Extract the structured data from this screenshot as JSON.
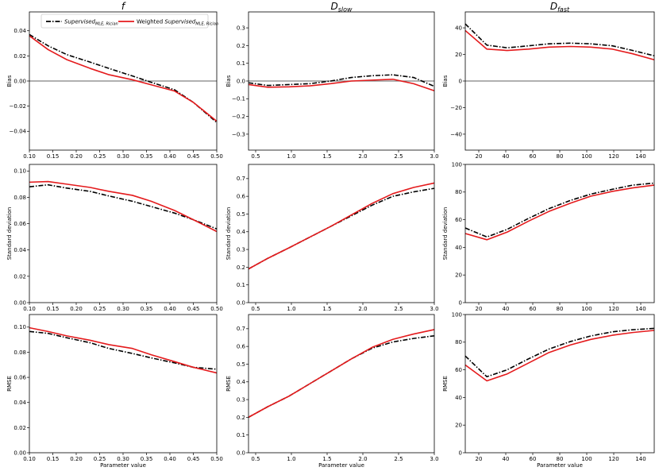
{
  "legend": {
    "supervised": {
      "main": "Supervised",
      "sub": "MLE, Rician"
    },
    "weighted": {
      "prefix": "Weighted ",
      "main": "Supervised",
      "sub": "MLE, Rician"
    }
  },
  "colors": {
    "supervised": "#000000",
    "weighted": "#e41a1c",
    "zero_line": "#808080",
    "frame": "#000000"
  },
  "chart_data": [
    {
      "type": "line",
      "id": "bias-f",
      "title": "f",
      "title_sub": "",
      "xlabel": "",
      "ylabel": "Bias",
      "xlim": [
        0.1,
        0.5
      ],
      "ylim": [
        -0.055,
        0.055
      ],
      "xticks": [
        0.1,
        0.15,
        0.2,
        0.25,
        0.3,
        0.35,
        0.4,
        0.45,
        0.5
      ],
      "xtick_labels": [
        "0.10",
        "0.15",
        "0.20",
        "0.25",
        "0.30",
        "0.35",
        "0.40",
        "0.45",
        "0.50"
      ],
      "yticks": [
        -0.04,
        -0.02,
        0.0,
        0.02,
        0.04
      ],
      "ytick_labels": [
        "−0.04",
        "−0.02",
        "0.00",
        "0.02",
        "0.04"
      ],
      "zero_line": true,
      "show_legend": true,
      "x": [
        0.1,
        0.14,
        0.18,
        0.23,
        0.27,
        0.32,
        0.36,
        0.41,
        0.45,
        0.5
      ],
      "series": [
        {
          "name": "Supervised MLE, Rician",
          "values": [
            0.037,
            0.028,
            0.021,
            0.015,
            0.01,
            0.004,
            -0.001,
            -0.007,
            -0.017,
            -0.033
          ]
        },
        {
          "name": "Weighted Supervised MLE, Rician",
          "values": [
            0.036,
            0.025,
            0.017,
            0.01,
            0.005,
            0.001,
            -0.003,
            -0.008,
            -0.017,
            -0.032
          ]
        }
      ]
    },
    {
      "type": "line",
      "id": "bias-dslow",
      "title": "D",
      "title_sub": "slow",
      "xlabel": "",
      "ylabel": "Bias",
      "xlim": [
        0.4,
        3.0
      ],
      "ylim": [
        -0.39,
        0.39
      ],
      "xticks": [
        0.5,
        1.0,
        1.5,
        2.0,
        2.5,
        3.0
      ],
      "xtick_labels": [
        "0.5",
        "1.0",
        "1.5",
        "2.0",
        "2.5",
        "3.0"
      ],
      "yticks": [
        -0.3,
        -0.2,
        -0.1,
        0.0,
        0.1,
        0.2,
        0.3
      ],
      "ytick_labels": [
        "−0.3",
        "−0.2",
        "−0.1",
        "0.0",
        "0.1",
        "0.2",
        "0.3"
      ],
      "zero_line": true,
      "show_legend": false,
      "x": [
        0.4,
        0.67,
        0.97,
        1.26,
        1.55,
        1.84,
        2.13,
        2.42,
        2.71,
        3.0
      ],
      "series": [
        {
          "name": "Supervised MLE, Rician",
          "values": [
            -0.01,
            -0.025,
            -0.02,
            -0.015,
            0.0,
            0.02,
            0.03,
            0.035,
            0.02,
            -0.03
          ]
        },
        {
          "name": "Weighted Supervised MLE, Rician",
          "values": [
            -0.02,
            -0.035,
            -0.033,
            -0.027,
            -0.015,
            0.0,
            0.005,
            0.01,
            -0.015,
            -0.055
          ]
        }
      ]
    },
    {
      "type": "line",
      "id": "bias-dfast",
      "title": "D",
      "title_sub": "fast",
      "xlabel": "",
      "ylabel": "Bias",
      "xlim": [
        10,
        150
      ],
      "ylim": [
        -52,
        52
      ],
      "xticks": [
        20,
        40,
        60,
        80,
        100,
        120,
        140
      ],
      "xtick_labels": [
        "20",
        "40",
        "60",
        "80",
        "100",
        "120",
        "140"
      ],
      "yticks": [
        -40,
        -20,
        0,
        20,
        40
      ],
      "ytick_labels": [
        "−40",
        "−20",
        "0",
        "20",
        "40"
      ],
      "zero_line": true,
      "show_legend": false,
      "x": [
        10,
        26,
        41,
        57,
        72,
        88,
        103,
        119,
        134,
        150
      ],
      "series": [
        {
          "name": "Supervised MLE, Rician",
          "values": [
            43,
            27,
            25,
            26.5,
            28,
            28.5,
            28,
            26.5,
            23,
            19
          ]
        },
        {
          "name": "Weighted Supervised MLE, Rician",
          "values": [
            38,
            24,
            23,
            24,
            25.5,
            26,
            25.5,
            24,
            20.5,
            16
          ]
        }
      ]
    },
    {
      "type": "line",
      "id": "std-f",
      "title": "",
      "title_sub": "",
      "xlabel": "",
      "ylabel": "Standard deviation",
      "xlim": [
        0.1,
        0.5
      ],
      "ylim": [
        0.0,
        0.105
      ],
      "xticks": [
        0.1,
        0.15,
        0.2,
        0.25,
        0.3,
        0.35,
        0.4,
        0.45,
        0.5
      ],
      "xtick_labels": [
        "0.10",
        "0.15",
        "0.20",
        "0.25",
        "0.30",
        "0.35",
        "0.40",
        "0.45",
        "0.50"
      ],
      "yticks": [
        0.0,
        0.02,
        0.04,
        0.06,
        0.08,
        0.1
      ],
      "ytick_labels": [
        "0.00",
        "0.02",
        "0.04",
        "0.06",
        "0.08",
        "0.10"
      ],
      "zero_line": false,
      "show_legend": false,
      "x": [
        0.1,
        0.14,
        0.18,
        0.23,
        0.27,
        0.32,
        0.36,
        0.41,
        0.45,
        0.5
      ],
      "series": [
        {
          "name": "Supervised MLE, Rician",
          "values": [
            0.088,
            0.0895,
            0.087,
            0.0845,
            0.081,
            0.077,
            0.073,
            0.068,
            0.063,
            0.056
          ]
        },
        {
          "name": "Weighted Supervised MLE, Rician",
          "values": [
            0.0915,
            0.092,
            0.09,
            0.0875,
            0.0845,
            0.0815,
            0.077,
            0.07,
            0.063,
            0.054
          ]
        }
      ]
    },
    {
      "type": "line",
      "id": "std-dslow",
      "title": "",
      "title_sub": "",
      "xlabel": "",
      "ylabel": "Standard deviation",
      "xlim": [
        0.4,
        3.0
      ],
      "ylim": [
        0.0,
        0.78
      ],
      "xticks": [
        0.5,
        1.0,
        1.5,
        2.0,
        2.5,
        3.0
      ],
      "xtick_labels": [
        "0.5",
        "1.0",
        "1.5",
        "2.0",
        "2.5",
        "3.0"
      ],
      "yticks": [
        0.0,
        0.1,
        0.2,
        0.3,
        0.4,
        0.5,
        0.6,
        0.7
      ],
      "ytick_labels": [
        "0.0",
        "0.1",
        "0.2",
        "0.3",
        "0.4",
        "0.5",
        "0.6",
        "0.7"
      ],
      "zero_line": false,
      "show_legend": false,
      "x": [
        0.4,
        0.67,
        0.97,
        1.26,
        1.55,
        1.84,
        2.13,
        2.42,
        2.71,
        3.0
      ],
      "series": [
        {
          "name": "Supervised MLE, Rician",
          "values": [
            0.19,
            0.25,
            0.31,
            0.37,
            0.43,
            0.49,
            0.55,
            0.6,
            0.625,
            0.645
          ]
        },
        {
          "name": "Weighted Supervised MLE, Rician",
          "values": [
            0.19,
            0.25,
            0.31,
            0.37,
            0.43,
            0.495,
            0.56,
            0.615,
            0.65,
            0.675
          ]
        }
      ]
    },
    {
      "type": "line",
      "id": "std-dfast",
      "title": "",
      "title_sub": "",
      "xlabel": "",
      "ylabel": "Standard deviation",
      "xlim": [
        10,
        150
      ],
      "ylim": [
        0,
        100
      ],
      "xticks": [
        20,
        40,
        60,
        80,
        100,
        120,
        140
      ],
      "xtick_labels": [
        "20",
        "40",
        "60",
        "80",
        "100",
        "120",
        "140"
      ],
      "yticks": [
        0,
        20,
        40,
        60,
        80,
        100
      ],
      "ytick_labels": [
        "0",
        "20",
        "40",
        "60",
        "80",
        "100"
      ],
      "zero_line": false,
      "show_legend": false,
      "x": [
        10,
        26,
        41,
        57,
        72,
        88,
        103,
        119,
        134,
        150
      ],
      "series": [
        {
          "name": "Supervised MLE, Rician",
          "values": [
            54,
            47.5,
            53,
            61,
            68,
            74,
            78.5,
            82,
            85,
            86.5
          ]
        },
        {
          "name": "Weighted Supervised MLE, Rician",
          "values": [
            50,
            45.5,
            51,
            59,
            66,
            72,
            77,
            80.5,
            83,
            85
          ]
        }
      ]
    },
    {
      "type": "line",
      "id": "rmse-f",
      "title": "",
      "title_sub": "",
      "xlabel": "Parameter value",
      "ylabel": "RMSE",
      "xlim": [
        0.1,
        0.5
      ],
      "ylim": [
        0.0,
        0.11
      ],
      "xticks": [
        0.1,
        0.15,
        0.2,
        0.25,
        0.3,
        0.35,
        0.4,
        0.45,
        0.5
      ],
      "xtick_labels": [
        "0.10",
        "0.15",
        "0.20",
        "0.25",
        "0.30",
        "0.35",
        "0.40",
        "0.45",
        "0.50"
      ],
      "yticks": [
        0.0,
        0.02,
        0.04,
        0.06,
        0.08,
        0.1
      ],
      "ytick_labels": [
        "0.00",
        "0.02",
        "0.04",
        "0.06",
        "0.08",
        "0.10"
      ],
      "zero_line": false,
      "show_legend": false,
      "x": [
        0.1,
        0.14,
        0.18,
        0.23,
        0.27,
        0.32,
        0.36,
        0.41,
        0.45,
        0.5
      ],
      "series": [
        {
          "name": "Supervised MLE, Rician",
          "values": [
            0.0965,
            0.095,
            0.0915,
            0.0875,
            0.083,
            0.079,
            0.0755,
            0.0715,
            0.068,
            0.0665
          ]
        },
        {
          "name": "Weighted Supervised MLE, Rician",
          "values": [
            0.0995,
            0.0965,
            0.093,
            0.0895,
            0.086,
            0.083,
            0.078,
            0.0725,
            0.068,
            0.0635
          ]
        }
      ]
    },
    {
      "type": "line",
      "id": "rmse-dslow",
      "title": "",
      "title_sub": "",
      "xlabel": "Parameter value",
      "ylabel": "RMSE",
      "xlim": [
        0.4,
        3.0
      ],
      "ylim": [
        0.0,
        0.78
      ],
      "xticks": [
        0.5,
        1.0,
        1.5,
        2.0,
        2.5,
        3.0
      ],
      "xtick_labels": [
        "0.5",
        "1.0",
        "1.5",
        "2.0",
        "2.5",
        "3.0"
      ],
      "yticks": [
        0.0,
        0.1,
        0.2,
        0.3,
        0.4,
        0.5,
        0.6,
        0.7
      ],
      "ytick_labels": [
        "0.0",
        "0.1",
        "0.2",
        "0.3",
        "0.4",
        "0.5",
        "0.6",
        "0.7"
      ],
      "zero_line": false,
      "show_legend": false,
      "x": [
        0.4,
        0.67,
        0.97,
        1.26,
        1.55,
        1.84,
        2.13,
        2.42,
        2.71,
        3.0
      ],
      "series": [
        {
          "name": "Supervised MLE, Rician",
          "values": [
            0.2,
            0.26,
            0.32,
            0.39,
            0.46,
            0.53,
            0.59,
            0.625,
            0.645,
            0.66
          ]
        },
        {
          "name": "Weighted Supervised MLE, Rician",
          "values": [
            0.2,
            0.26,
            0.32,
            0.39,
            0.46,
            0.53,
            0.595,
            0.64,
            0.67,
            0.695
          ]
        }
      ]
    },
    {
      "type": "line",
      "id": "rmse-dfast",
      "title": "",
      "title_sub": "",
      "xlabel": "Parameter value",
      "ylabel": "RMSE",
      "xlim": [
        10,
        150
      ],
      "ylim": [
        0,
        100
      ],
      "xticks": [
        20,
        40,
        60,
        80,
        100,
        120,
        140
      ],
      "xtick_labels": [
        "20",
        "40",
        "60",
        "80",
        "100",
        "120",
        "140"
      ],
      "yticks": [
        0,
        20,
        40,
        60,
        80,
        100
      ],
      "ytick_labels": [
        "0",
        "20",
        "40",
        "60",
        "80",
        "100"
      ],
      "zero_line": false,
      "show_legend": false,
      "x": [
        10,
        26,
        41,
        57,
        72,
        88,
        103,
        119,
        134,
        150
      ],
      "series": [
        {
          "name": "Supervised MLE, Rician",
          "values": [
            70,
            55,
            60,
            68,
            75,
            80.5,
            84.5,
            87.5,
            89,
            90
          ]
        },
        {
          "name": "Weighted Supervised MLE, Rician",
          "values": [
            63.5,
            52,
            57,
            65,
            72.5,
            78,
            82,
            85,
            87,
            88.5
          ]
        }
      ]
    }
  ]
}
